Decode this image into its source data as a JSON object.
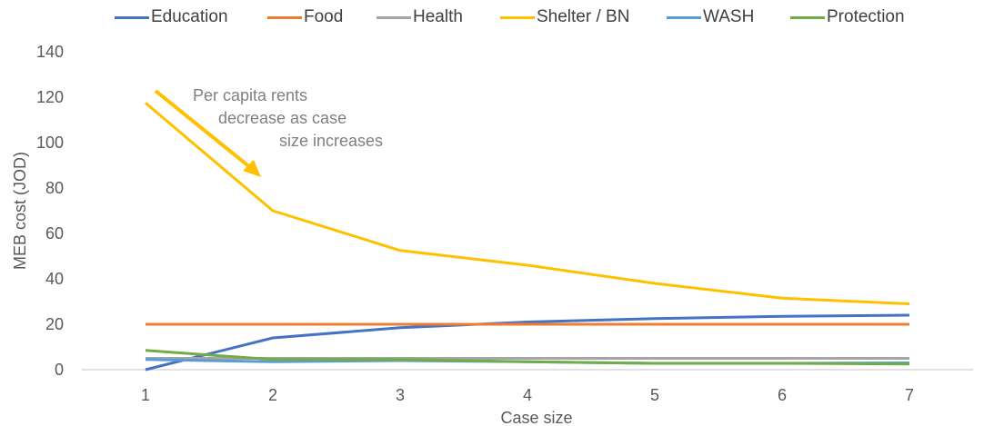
{
  "chart_data": {
    "type": "line",
    "title": "",
    "xlabel": "Case size",
    "ylabel": "MEB cost (JOD)",
    "x": [
      1,
      2,
      3,
      4,
      5,
      6,
      7
    ],
    "ylim": [
      0,
      140
    ],
    "yticks": [
      0,
      20,
      40,
      60,
      80,
      100,
      120,
      140
    ],
    "grid": false,
    "legend_position": "top",
    "series": [
      {
        "name": "Education",
        "color": "#4472C4",
        "values": [
          0,
          14,
          18.5,
          21,
          22.5,
          23.5,
          24
        ]
      },
      {
        "name": "Food",
        "color": "#ED7D31",
        "values": [
          20,
          20,
          20,
          20,
          20,
          20,
          20
        ]
      },
      {
        "name": "Health",
        "color": "#A5A5A5",
        "values": [
          5,
          5,
          5,
          5,
          5,
          5,
          5
        ]
      },
      {
        "name": "Shelter / BN",
        "color": "#FFC000",
        "values": [
          117.5,
          70,
          52.5,
          46,
          38,
          31.5,
          29
        ]
      },
      {
        "name": "WASH",
        "color": "#5B9BD5",
        "values": [
          4.5,
          3.5,
          4,
          3.5,
          2.8,
          2.8,
          3
        ]
      },
      {
        "name": "Protection",
        "color": "#70AD47",
        "values": [
          8.5,
          4.5,
          4.5,
          3.5,
          2.8,
          2.8,
          2.5
        ]
      }
    ],
    "annotations": [
      {
        "lines": [
          "Per capita rents",
          "decrease as case",
          "size increases"
        ],
        "color": "#808080",
        "arrow_color": "#FFC000"
      }
    ]
  }
}
